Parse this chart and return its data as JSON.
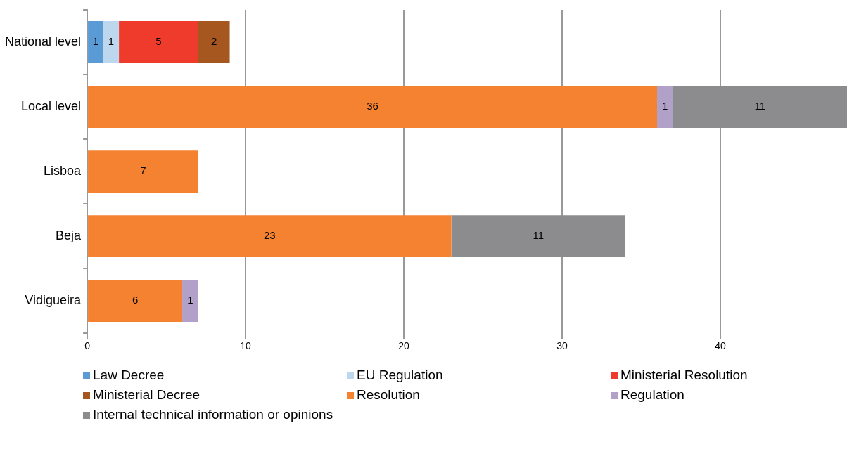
{
  "chart_data": {
    "type": "bar",
    "orientation": "horizontal",
    "stacked": true,
    "data_labels": true,
    "grid": "x",
    "legend": "bottom",
    "categories": [
      "National level",
      "Local level",
      "Lisboa",
      "Beja",
      "Vidigueira"
    ],
    "xlim": [
      0,
      48
    ],
    "xticks": [
      0,
      10,
      20,
      30,
      40
    ],
    "series": [
      {
        "name": "Law  Decree",
        "color": "#5b9bd5",
        "values": [
          1,
          null,
          null,
          null,
          null
        ]
      },
      {
        "name": "EU Regulation",
        "color": "#bdd7ee",
        "values": [
          1,
          null,
          null,
          null,
          null
        ]
      },
      {
        "name": "Ministerial Resolution",
        "color": "#ee3b2b",
        "values": [
          5,
          null,
          null,
          null,
          null
        ]
      },
      {
        "name": "Ministerial Decree",
        "color": "#a5571f",
        "values": [
          2,
          null,
          null,
          null,
          null
        ]
      },
      {
        "name": "Resolution",
        "color": "#f58230",
        "values": [
          null,
          36,
          7,
          23,
          6
        ]
      },
      {
        "name": "Regulation",
        "color": "#b1a0c7",
        "values": [
          null,
          1,
          null,
          null,
          1
        ]
      },
      {
        "name": "Internal technical information or opinions",
        "color": "#8c8c8f",
        "values": [
          null,
          11,
          null,
          11,
          null
        ]
      }
    ]
  }
}
